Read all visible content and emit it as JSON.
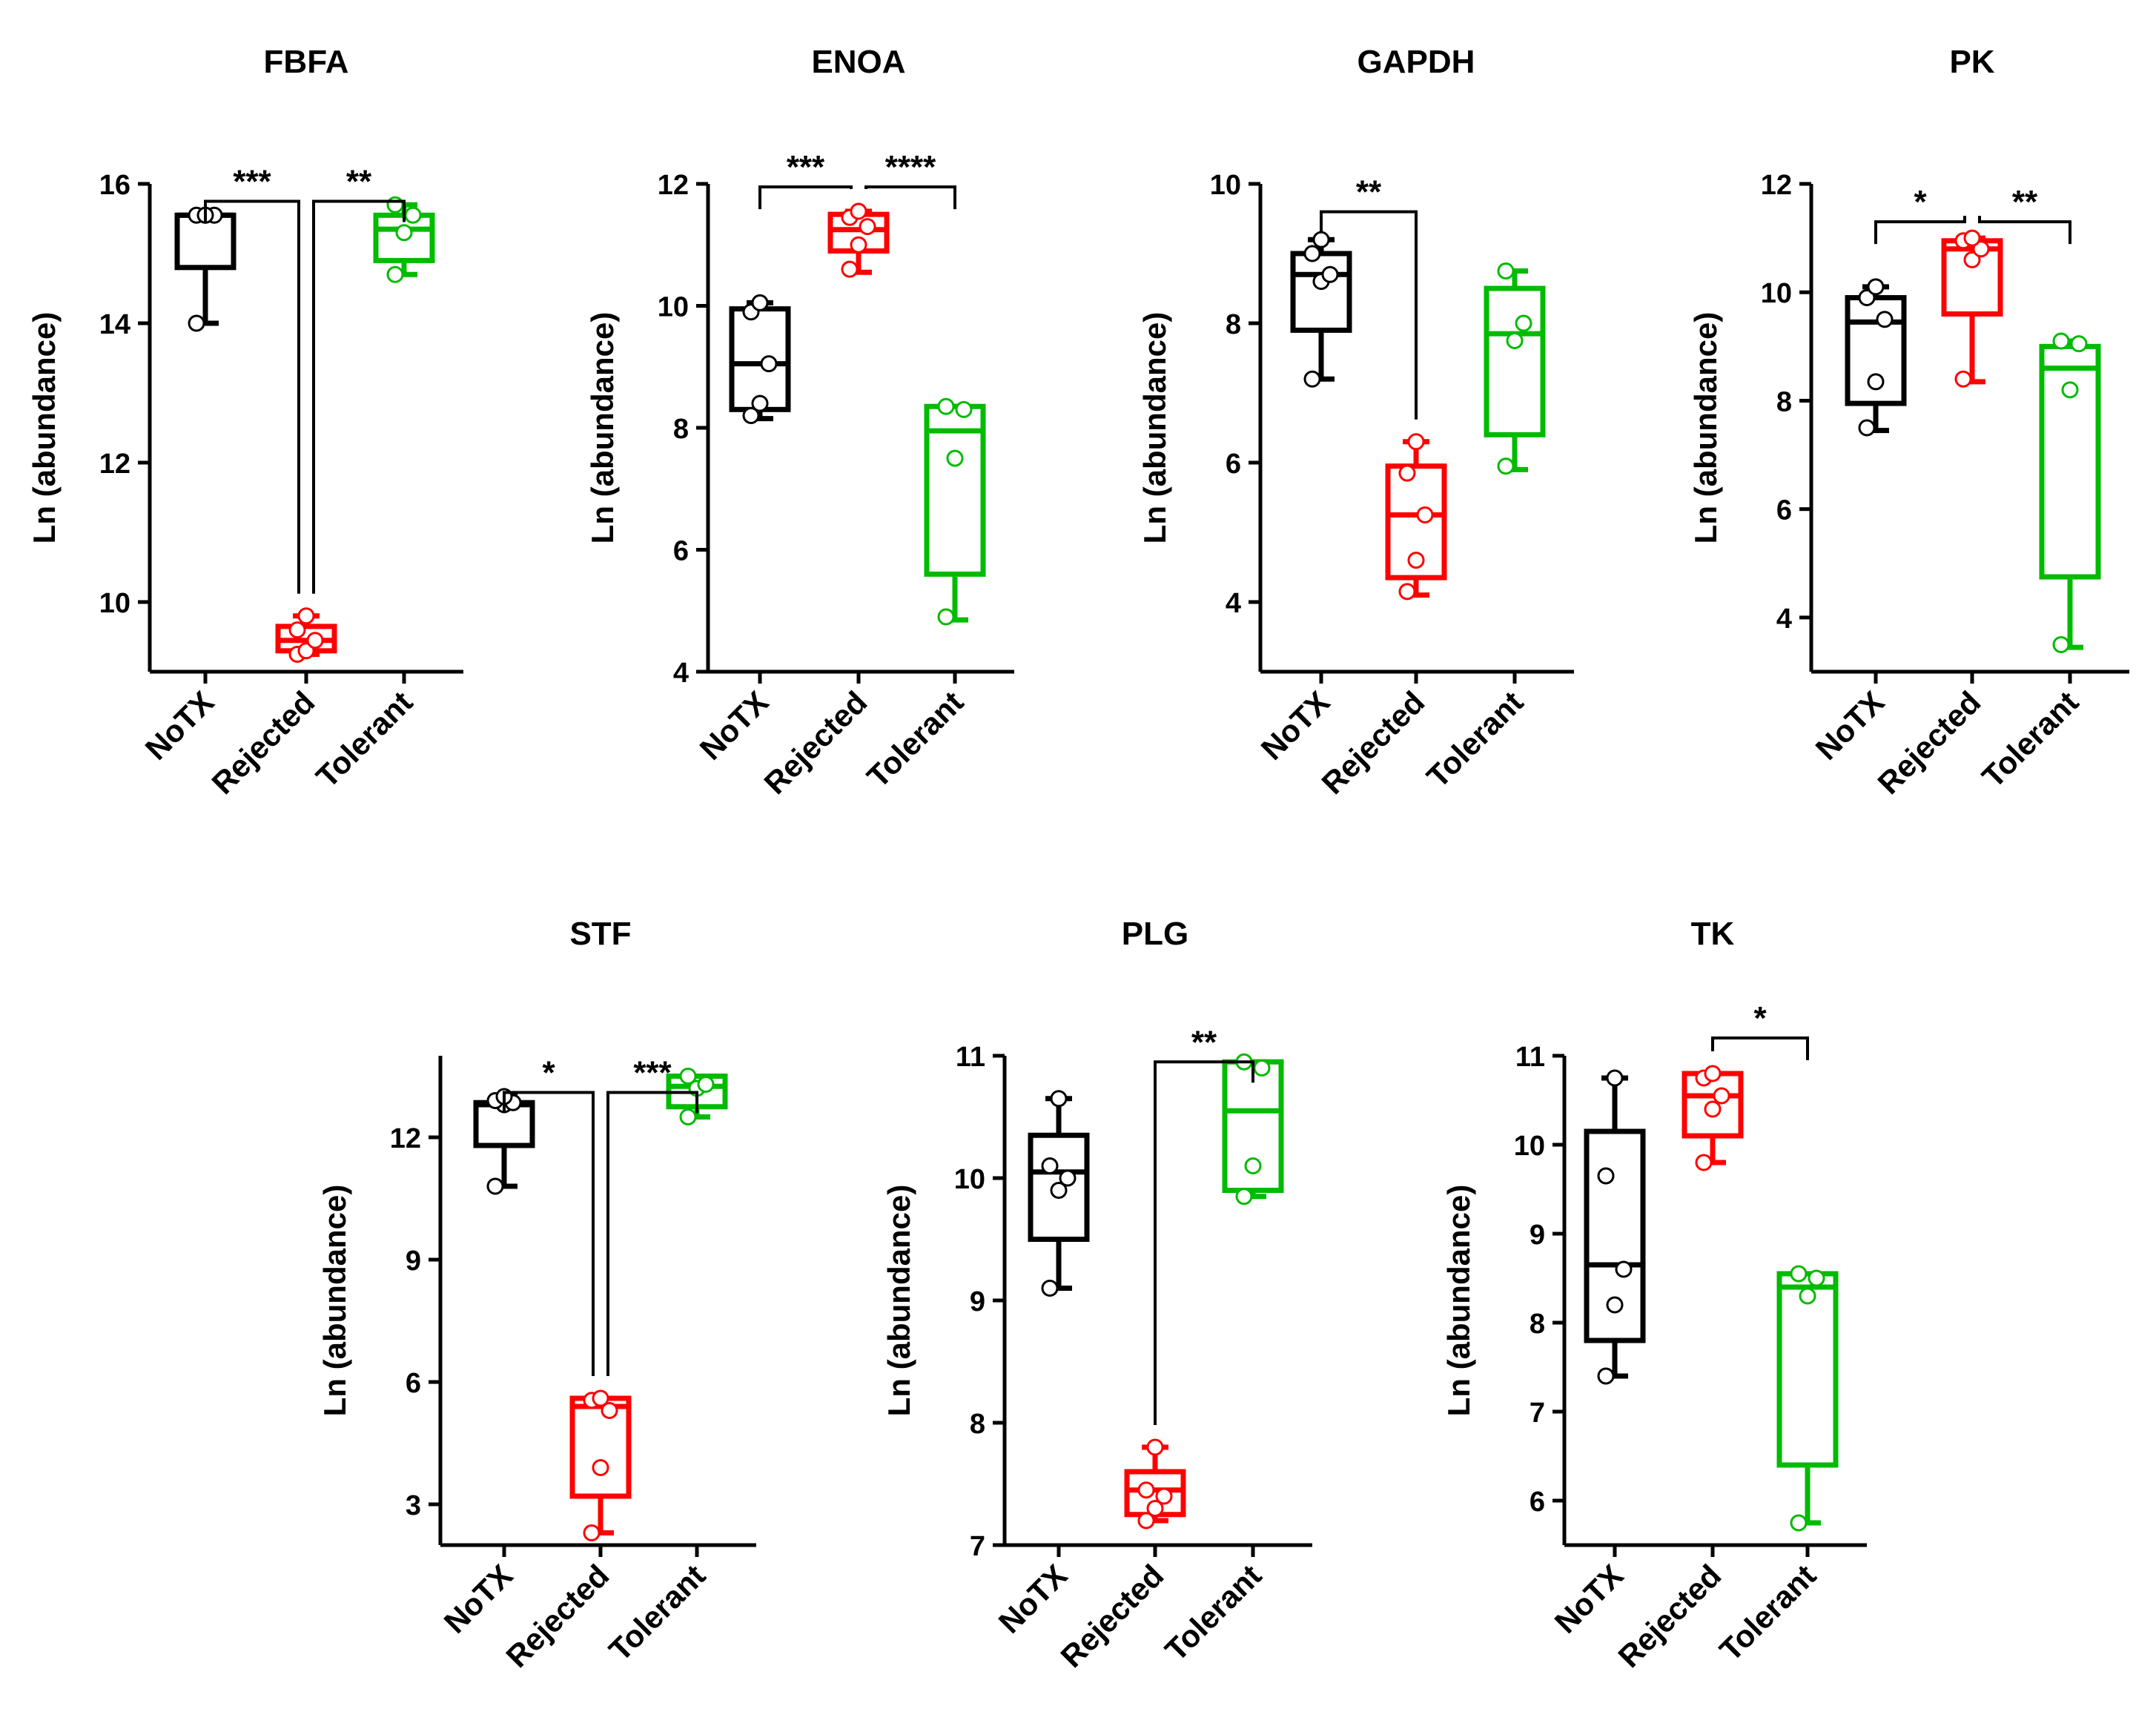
{
  "colors": {
    "NoTX": "#000000",
    "Rejected": "#ff0000",
    "Tolerant": "#00bb00"
  },
  "chart_data": [
    {
      "type": "box",
      "title": "FBFA",
      "ylabel": "Ln (abundance)",
      "categories": [
        "NoTX",
        "Rejected",
        "Tolerant"
      ],
      "ylim": [
        9.0,
        16.0
      ],
      "yticks": [
        "10",
        "12",
        "14",
        "16"
      ],
      "groups": [
        {
          "name": "NoTX",
          "whisker_low": 14.0,
          "q1": 14.8,
          "median": 15.55,
          "q3": 15.55,
          "whisker_high": 15.55,
          "points": [
            14.0,
            15.55,
            15.55,
            15.55,
            15.55
          ]
        },
        {
          "name": "Rejected",
          "whisker_low": 9.25,
          "q1": 9.3,
          "median": 9.45,
          "q3": 9.65,
          "whisker_high": 9.8,
          "points": [
            9.25,
            9.3,
            9.45,
            9.6,
            9.8
          ]
        },
        {
          "name": "Tolerant",
          "whisker_low": 14.7,
          "q1": 14.9,
          "median": 15.35,
          "q3": 15.55,
          "whisker_high": 15.7,
          "points": [
            14.7,
            15.3,
            15.55,
            15.7
          ]
        }
      ],
      "significance": [
        {
          "from": "NoTX",
          "to": "Rejected",
          "label": "***",
          "y": 15.75
        },
        {
          "from": "Rejected",
          "to": "Tolerant",
          "label": "**",
          "y": 15.75
        }
      ]
    },
    {
      "type": "box",
      "title": "ENOA",
      "ylabel": "Ln (abundance)",
      "categories": [
        "NoTX",
        "Rejected",
        "Tolerant"
      ],
      "ylim": [
        4.0,
        12.0
      ],
      "yticks": [
        "4",
        "6",
        "8",
        "10",
        "12"
      ],
      "groups": [
        {
          "name": "NoTX",
          "whisker_low": 8.15,
          "q1": 8.3,
          "median": 9.05,
          "q3": 9.95,
          "whisker_high": 10.05,
          "points": [
            8.2,
            8.4,
            9.05,
            9.9,
            10.05
          ]
        },
        {
          "name": "Rejected",
          "whisker_low": 10.55,
          "q1": 10.9,
          "median": 11.25,
          "q3": 11.5,
          "whisker_high": 11.55,
          "points": [
            10.6,
            11.0,
            11.3,
            11.45,
            11.55
          ]
        },
        {
          "name": "Tolerant",
          "whisker_low": 4.85,
          "q1": 5.6,
          "median": 7.95,
          "q3": 8.35,
          "whisker_high": 8.35,
          "points": [
            4.9,
            7.5,
            8.3,
            8.35
          ]
        }
      ],
      "significance": [
        {
          "from": "NoTX",
          "to": "Rejected",
          "label": "***",
          "y": 11.95
        },
        {
          "from": "Rejected",
          "to": "Tolerant",
          "label": "****",
          "y": 11.95
        }
      ]
    },
    {
      "type": "box",
      "title": "GAPDH",
      "ylabel": "Ln (abundance)",
      "categories": [
        "NoTX",
        "Rejected",
        "Tolerant"
      ],
      "ylim": [
        3.0,
        10.0
      ],
      "yticks": [
        "4",
        "6",
        "8",
        "10"
      ],
      "groups": [
        {
          "name": "NoTX",
          "whisker_low": 7.2,
          "q1": 7.9,
          "median": 8.7,
          "q3": 9.0,
          "whisker_high": 9.2,
          "points": [
            7.2,
            8.6,
            8.7,
            9.0,
            9.2
          ]
        },
        {
          "name": "Rejected",
          "whisker_low": 4.1,
          "q1": 4.35,
          "median": 5.25,
          "q3": 5.95,
          "whisker_high": 6.3,
          "points": [
            4.15,
            4.6,
            5.25,
            5.85,
            6.3
          ]
        },
        {
          "name": "Tolerant",
          "whisker_low": 5.9,
          "q1": 6.4,
          "median": 7.85,
          "q3": 8.5,
          "whisker_high": 8.75,
          "points": [
            5.95,
            7.75,
            8.0,
            8.75
          ]
        }
      ],
      "significance": [
        {
          "from": "NoTX",
          "to": "Rejected",
          "label": "**",
          "y": 9.6
        }
      ]
    },
    {
      "type": "box",
      "title": "PK",
      "ylabel": "Ln (abundance)",
      "categories": [
        "NoTX",
        "Rejected",
        "Tolerant"
      ],
      "ylim": [
        3.0,
        12.0
      ],
      "yticks": [
        "4",
        "6",
        "8",
        "10",
        "12"
      ],
      "groups": [
        {
          "name": "NoTX",
          "whisker_low": 7.45,
          "q1": 7.95,
          "median": 9.45,
          "q3": 9.9,
          "whisker_high": 10.1,
          "points": [
            7.5,
            8.35,
            9.5,
            9.9,
            10.1
          ]
        },
        {
          "name": "Rejected",
          "whisker_low": 8.35,
          "q1": 9.6,
          "median": 10.8,
          "q3": 10.95,
          "whisker_high": 11.0,
          "points": [
            8.4,
            10.6,
            10.8,
            10.95,
            11.0
          ]
        },
        {
          "name": "Tolerant",
          "whisker_low": 3.45,
          "q1": 4.75,
          "median": 8.6,
          "q3": 9.0,
          "whisker_high": 9.1,
          "points": [
            3.5,
            8.2,
            9.05,
            9.1
          ]
        }
      ],
      "significance": [
        {
          "from": "NoTX",
          "to": "Rejected",
          "label": "*",
          "y": 11.3
        },
        {
          "from": "Rejected",
          "to": "Tolerant",
          "label": "**",
          "y": 11.3
        }
      ]
    },
    {
      "type": "box",
      "title": "STF",
      "ylabel": "Ln (abundance)",
      "categories": [
        "NoTX",
        "Rejected",
        "Tolerant"
      ],
      "ylim": [
        2.0,
        14.0
      ],
      "yticks": [
        "3",
        "6",
        "9",
        "12"
      ],
      "groups": [
        {
          "name": "NoTX",
          "whisker_low": 10.8,
          "q1": 11.8,
          "median": 12.8,
          "q3": 12.85,
          "whisker_high": 13.0,
          "points": [
            10.8,
            12.8,
            12.85,
            12.9,
            13.0
          ]
        },
        {
          "name": "Rejected",
          "whisker_low": 2.3,
          "q1": 3.2,
          "median": 5.4,
          "q3": 5.6,
          "whisker_high": 5.6,
          "points": [
            2.3,
            3.9,
            5.3,
            5.55,
            5.6
          ]
        },
        {
          "name": "Tolerant",
          "whisker_low": 12.5,
          "q1": 12.75,
          "median": 13.25,
          "q3": 13.5,
          "whisker_high": 13.5,
          "points": [
            12.5,
            13.2,
            13.3,
            13.5
          ]
        }
      ],
      "significance": [
        {
          "from": "NoTX",
          "to": "Rejected",
          "label": "*",
          "y": 13.1
        },
        {
          "from": "Rejected",
          "to": "Tolerant",
          "label": "***",
          "y": 13.1
        }
      ]
    },
    {
      "type": "box",
      "title": "PLG",
      "ylabel": "Ln (abundance)",
      "categories": [
        "NoTX",
        "Rejected",
        "Tolerant"
      ],
      "ylim": [
        7.0,
        11.0
      ],
      "yticks": [
        "7",
        "8",
        "9",
        "10",
        "11"
      ],
      "groups": [
        {
          "name": "NoTX",
          "whisker_low": 9.1,
          "q1": 9.5,
          "median": 10.05,
          "q3": 10.35,
          "whisker_high": 10.65,
          "points": [
            9.1,
            9.9,
            10.0,
            10.1,
            10.65
          ]
        },
        {
          "name": "Rejected",
          "whisker_low": 7.2,
          "q1": 7.25,
          "median": 7.45,
          "q3": 7.6,
          "whisker_high": 7.8,
          "points": [
            7.2,
            7.3,
            7.4,
            7.45,
            7.8
          ]
        },
        {
          "name": "Tolerant",
          "whisker_low": 9.85,
          "q1": 9.9,
          "median": 10.55,
          "q3": 10.95,
          "whisker_high": 10.95,
          "points": [
            9.85,
            10.1,
            10.9,
            10.95
          ]
        }
      ],
      "significance": [
        {
          "from": "Rejected",
          "to": "Tolerant",
          "label": "**",
          "y": 10.95
        }
      ]
    },
    {
      "type": "box",
      "title": "TK",
      "ylabel": "Ln (abundance)",
      "categories": [
        "NoTX",
        "Rejected",
        "Tolerant"
      ],
      "ylim": [
        5.5,
        11.0
      ],
      "yticks": [
        "6",
        "7",
        "8",
        "9",
        "10",
        "11"
      ],
      "groups": [
        {
          "name": "NoTX",
          "whisker_low": 7.4,
          "q1": 7.8,
          "median": 8.65,
          "q3": 10.15,
          "whisker_high": 10.75,
          "points": [
            7.4,
            8.2,
            8.6,
            9.65,
            10.75
          ]
        },
        {
          "name": "Rejected",
          "whisker_low": 9.8,
          "q1": 10.1,
          "median": 10.55,
          "q3": 10.8,
          "whisker_high": 10.8,
          "points": [
            9.8,
            10.4,
            10.55,
            10.75,
            10.8
          ]
        },
        {
          "name": "Tolerant",
          "whisker_low": 5.75,
          "q1": 6.4,
          "median": 8.4,
          "q3": 8.55,
          "whisker_high": 8.55,
          "points": [
            5.75,
            8.3,
            8.5,
            8.55
          ]
        }
      ],
      "significance": [
        {
          "from": "Rejected",
          "to": "Tolerant",
          "label": "*",
          "y": 11.2
        }
      ]
    }
  ]
}
